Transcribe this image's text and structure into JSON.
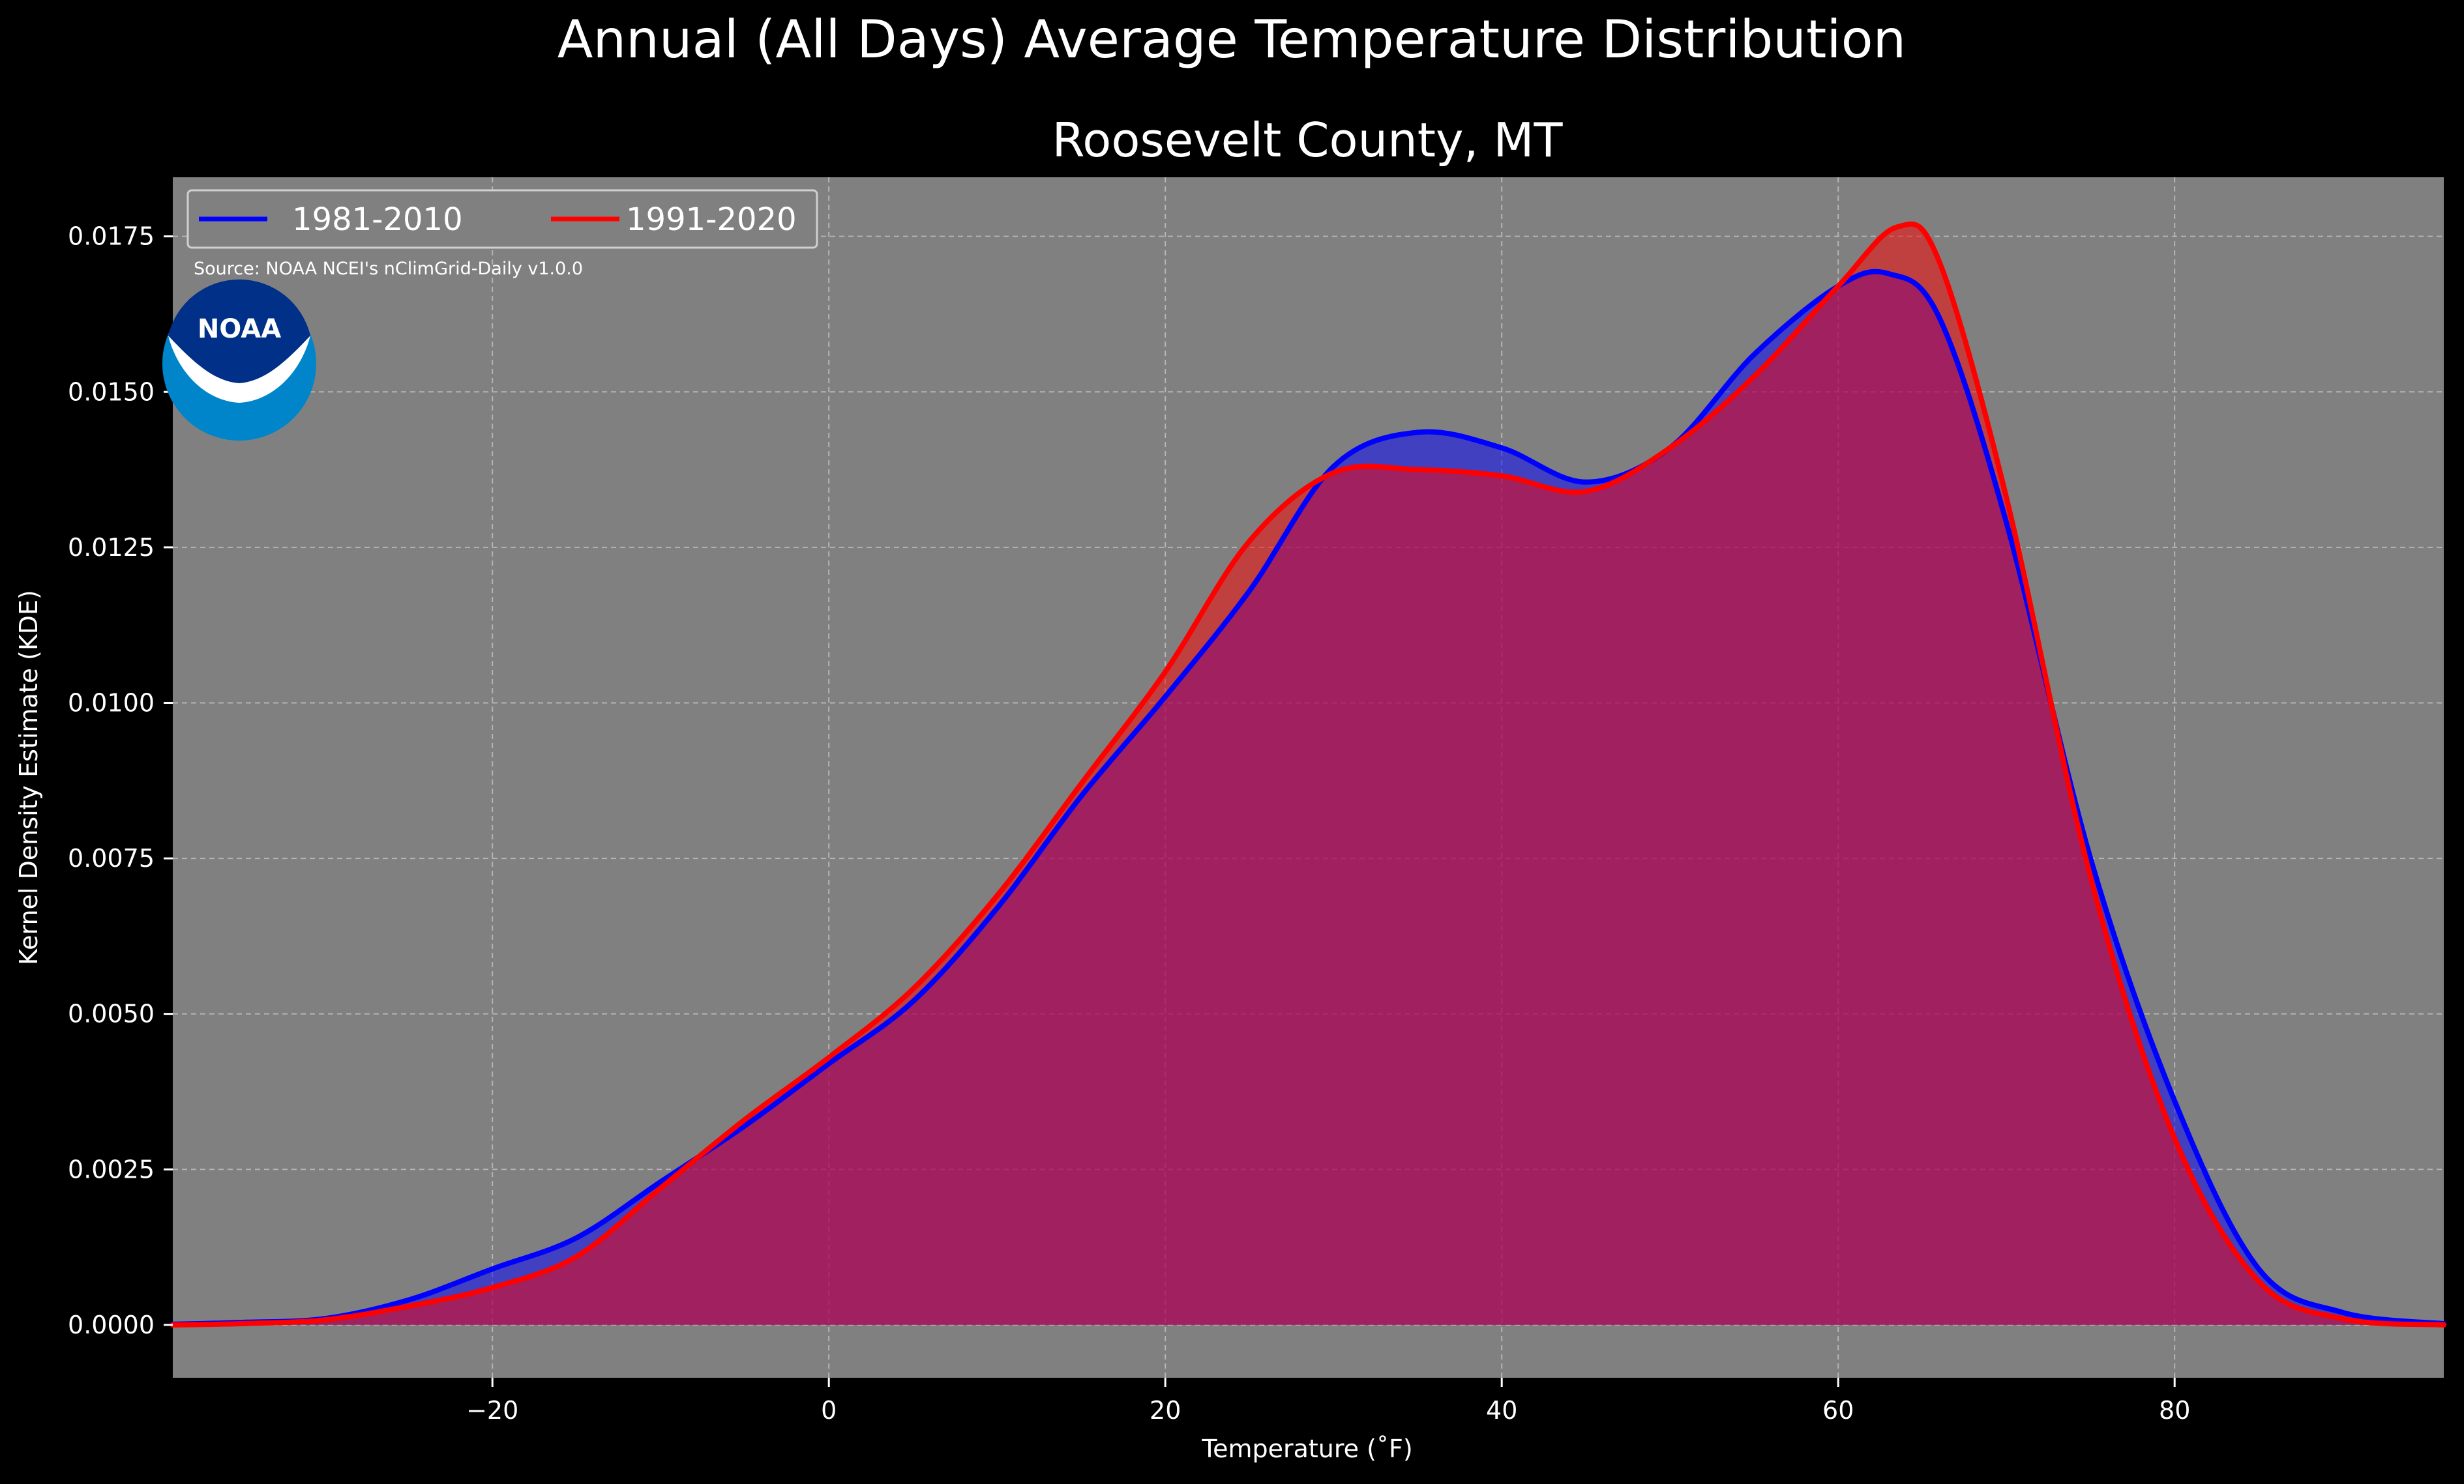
{
  "chart_data": {
    "type": "area",
    "title": "Annual (All Days) Average Temperature Distribution",
    "subtitle": "Roosevelt County, MT",
    "xlabel": "Temperature (˚F)",
    "ylabel": "Kernel Density Estimate (KDE)",
    "xlim": [
      -39,
      96
    ],
    "ylim": [
      -0.00085,
      0.01845
    ],
    "x_ticks": [
      -20,
      0,
      20,
      40,
      60,
      80
    ],
    "x_tick_labels": [
      "−20",
      "0",
      "20",
      "40",
      "60",
      "80"
    ],
    "y_ticks": [
      0.0,
      0.0025,
      0.005,
      0.0075,
      0.01,
      0.0125,
      0.015,
      0.0175
    ],
    "y_tick_labels": [
      "0.0000",
      "0.0025",
      "0.0050",
      "0.0075",
      "0.0100",
      "0.0125",
      "0.0150",
      "0.0175"
    ],
    "grid": true,
    "legend": {
      "placement": "top-left",
      "columns": 2
    },
    "source_text": "Source: NOAA NCEI's nClimGrid-Daily v1.0.0",
    "logo_text": "NOAA",
    "colors": {
      "background": "#000000",
      "plot_background": "#808080",
      "grid": "#b4b4b4",
      "text": "#ffffff",
      "logo_outer": "#0085ca",
      "logo_inner": "#003087"
    },
    "series": [
      {
        "name": "1981-2010",
        "color": "#0000ff",
        "fill_color": "#0000ff",
        "x": [
          -39,
          -35,
          -30,
          -25,
          -20,
          -15,
          -10,
          -5,
          0,
          5,
          10,
          15,
          20,
          25,
          30,
          35,
          40,
          45,
          50,
          55,
          60,
          63,
          66,
          70,
          75,
          80,
          85,
          90,
          96
        ],
        "y": [
          1e-05,
          4e-05,
          0.0001,
          0.0004,
          0.0009,
          0.0014,
          0.0023,
          0.0032,
          0.0042,
          0.0052,
          0.0067,
          0.0085,
          0.0101,
          0.0118,
          0.0138,
          0.01435,
          0.0141,
          0.01355,
          0.0141,
          0.0156,
          0.0167,
          0.0169,
          0.0162,
          0.0129,
          0.0075,
          0.0036,
          0.0009,
          0.0002,
          2e-05
        ]
      },
      {
        "name": "1991-2020",
        "color": "#ff0000",
        "fill_color": "#ff0000",
        "x": [
          -39,
          -35,
          -30,
          -25,
          -20,
          -15,
          -10,
          -5,
          0,
          5,
          10,
          15,
          20,
          25,
          30,
          35,
          40,
          45,
          50,
          55,
          60,
          63.5,
          66,
          70,
          75,
          80,
          85,
          90,
          96
        ],
        "y": [
          0.0,
          2e-05,
          8e-05,
          0.0003,
          0.0006,
          0.0011,
          0.0022,
          0.0033,
          0.0043,
          0.0054,
          0.0069,
          0.0087,
          0.0105,
          0.0126,
          0.0137,
          0.01375,
          0.01365,
          0.0134,
          0.0141,
          0.01525,
          0.0167,
          0.01765,
          0.0171,
          0.0133,
          0.0072,
          0.003,
          0.0007,
          0.0001,
          0.0
        ]
      }
    ]
  }
}
